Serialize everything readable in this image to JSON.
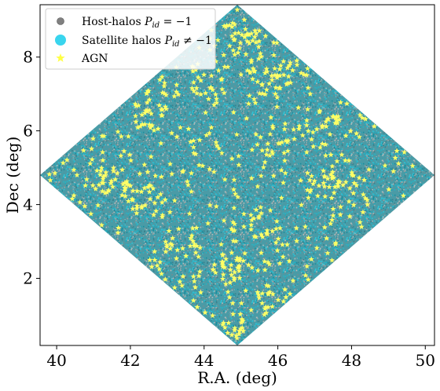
{
  "chart_data": {
    "type": "scatter",
    "title": "",
    "xlabel": "R.A. (deg)",
    "ylabel": "Dec (deg)",
    "xlim": [
      39.55,
      50.25
    ],
    "ylim": [
      0.18,
      9.42
    ],
    "xticks": [
      40,
      42,
      44,
      46,
      48,
      50
    ],
    "yticks": [
      2,
      4,
      6,
      8
    ],
    "grid": false,
    "legend_position": "upper-left",
    "footprint": {
      "shape": "diamond",
      "center": [
        44.9,
        4.8
      ],
      "half_width_ra": 5.35,
      "half_height_dec": 4.62
    },
    "series": [
      {
        "key": "host",
        "name": "Host-halos",
        "name_math": "P_id = −1",
        "label_plain": "Host-halos P_id = −1",
        "marker": "circle",
        "color": "#808080",
        "distribution": "dense uniform over footprint"
      },
      {
        "key": "satellite",
        "name": "Satellite halos",
        "name_math": "P_id ≠ −1",
        "label_plain": "Satellite halos P_id ≠ −1",
        "marker": "circle",
        "color": "#39d5ee",
        "distribution": "dense uniform over footprint"
      },
      {
        "key": "agn",
        "name": "AGN",
        "label_plain": "AGN",
        "marker": "star",
        "color": "#ffff66",
        "distribution": "sparse, clustered (~700 objects)"
      }
    ]
  }
}
